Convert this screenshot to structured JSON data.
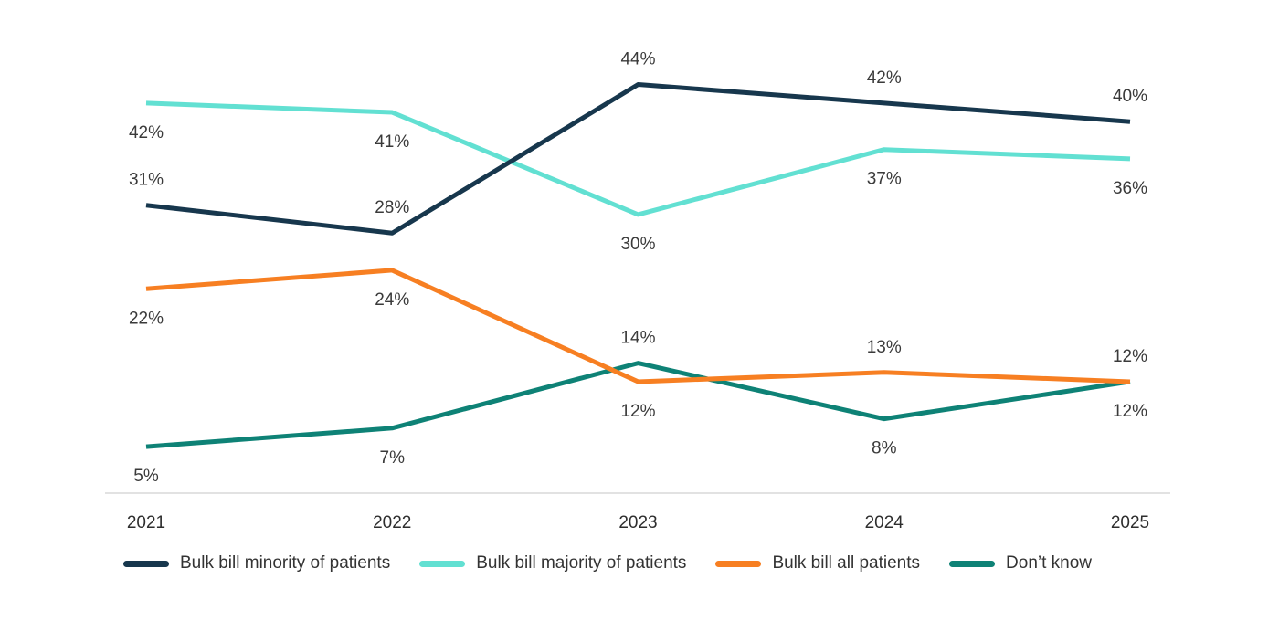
{
  "chart_data": {
    "type": "line",
    "title": "",
    "xlabel": "",
    "ylabel": "",
    "x": [
      "2021",
      "2022",
      "2023",
      "2024",
      "2025"
    ],
    "series": [
      {
        "id": "minority",
        "name": "Bulk bill minority of patients",
        "color": "#17374d",
        "values": [
          31,
          28,
          44,
          42,
          40
        ],
        "labels": [
          "31%",
          "28%",
          "44%",
          "42%",
          "40%"
        ],
        "label_positions": [
          "above",
          "above",
          "above",
          "above",
          "above"
        ]
      },
      {
        "id": "majority",
        "name": "Bulk bill majority of patients",
        "color": "#62e0d2",
        "values": [
          42,
          41,
          30,
          37,
          36
        ],
        "labels": [
          "42%",
          "41%",
          "30%",
          "37%",
          "36%"
        ],
        "label_positions": [
          "below",
          "below",
          "below",
          "below",
          "below"
        ]
      },
      {
        "id": "all",
        "name": "Bulk bill all patients",
        "color": "#f77f22",
        "values": [
          22,
          24,
          12,
          13,
          12
        ],
        "labels": [
          "22%",
          "24%",
          "12%",
          "13%",
          "12%"
        ],
        "label_positions": [
          "below",
          "below",
          "below",
          "above",
          "above"
        ]
      },
      {
        "id": "dont-know",
        "name": "Don’t know",
        "color": "#0e8276",
        "values": [
          5,
          7,
          14,
          8,
          12
        ],
        "labels": [
          "5%",
          "7%",
          "14%",
          "8%",
          "12%"
        ],
        "label_positions": [
          "below",
          "below",
          "above",
          "below",
          "below"
        ]
      }
    ],
    "ylim": [
      0,
      48
    ],
    "grid": false,
    "y_axis_shown": false,
    "x_axis_line_color": "#d9d9d9",
    "legend_position": "bottom",
    "label_format": "percent"
  }
}
